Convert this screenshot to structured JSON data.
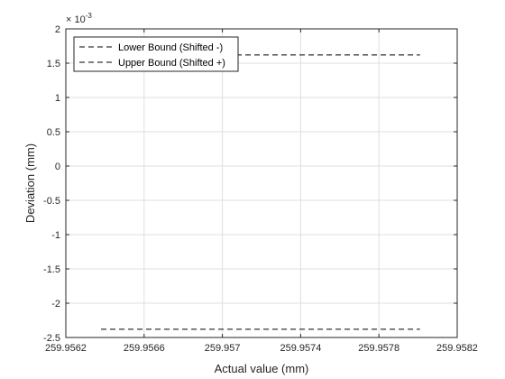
{
  "chart_data": {
    "type": "line",
    "xlabel": "Actual value (mm)",
    "ylabel": "Deviation (mm)",
    "xlim": [
      259.9562,
      259.9582
    ],
    "ylim": [
      -0.0025,
      0.002
    ],
    "x_ticks": [
      259.9562,
      259.9566,
      259.957,
      259.9574,
      259.9578,
      259.9582
    ],
    "x_tick_labels": [
      "259.9562",
      "259.9566",
      "259.957",
      "259.9574",
      "259.9578",
      "259.9582"
    ],
    "y_ticks": [
      -0.0025,
      -0.002,
      -0.0015,
      -0.001,
      -0.0005,
      0,
      0.0005,
      0.001,
      0.0015,
      0.002
    ],
    "y_tick_labels": [
      "-2.5",
      "-2",
      "-1.5",
      "-1",
      "-0.5",
      "0",
      "0.5",
      "1",
      "1.5",
      "2"
    ],
    "y_exponent": {
      "base": "× 10",
      "power": "-3"
    },
    "grid": true,
    "legend_position": "top-left",
    "series": [
      {
        "name": "Lower Bound (Shifted -)",
        "x": [
          259.95638,
          259.95801
        ],
        "y": [
          -0.00238,
          -0.00238
        ],
        "color": "#000000",
        "dash": "dashed"
      },
      {
        "name": "Upper Bound (Shifted +)",
        "x": [
          259.95638,
          259.95801
        ],
        "y": [
          0.00162,
          0.00162
        ],
        "color": "#000000",
        "dash": "dashed"
      }
    ]
  }
}
